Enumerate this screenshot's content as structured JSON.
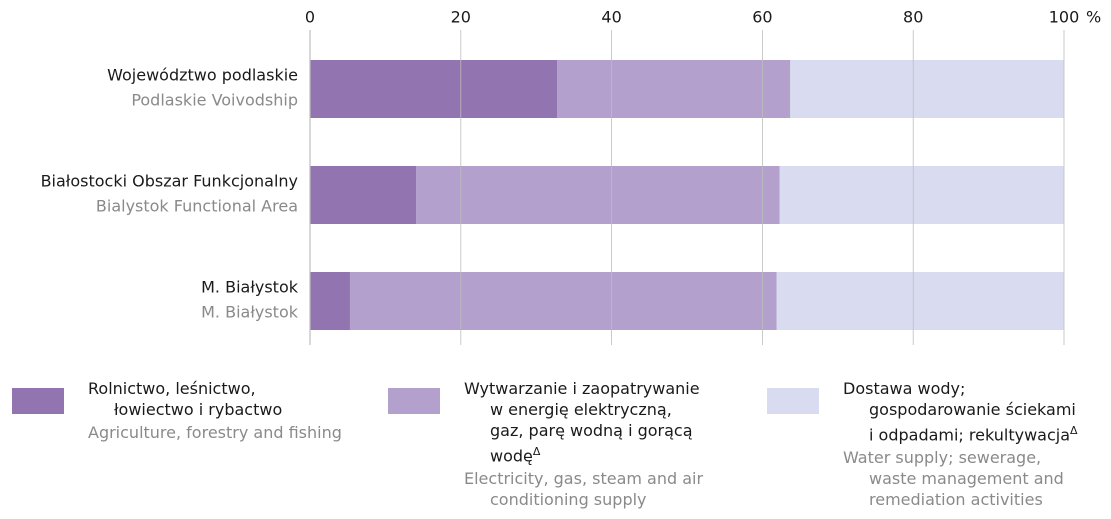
{
  "chart_data": {
    "type": "stacked-bar-horizontal",
    "categories": [
      "Województwo podlaskie",
      "Białostocki Obszar Funkcjonalny",
      "M. Białystok"
    ],
    "categories_en": [
      "Podlaskie Voivodship",
      "Bialystok Functional Area",
      "M. Białystok"
    ],
    "series": [
      {
        "name": "Rolnictwo, leśnictwo,\nłowiectwo i rybactwo",
        "name_en": "Agriculture, forestry and fishing",
        "color": "#9274b0",
        "values": [
          32.8,
          14.1,
          5.3
        ]
      },
      {
        "name": "Wytwarzanie i zaopatrywanie\nw energię elektryczną,\ngaz, parę wodną i gorącą\nwodę",
        "note": "Δ",
        "name_en": "Electricity, gas, steam and air\nconditioning supply",
        "color": "#b3a0cc",
        "values": [
          30.9,
          48.2,
          56.6
        ]
      },
      {
        "name": "Dostawa wody;\ngospodarowanie ściekami\ni odpadami; rekultywacja",
        "note": "Δ",
        "name_en": "Water supply; sewerage,\nwaste management and\nremediation activities",
        "color": "#d9dcf0",
        "values": [
          36.3,
          37.7,
          38.1
        ]
      }
    ],
    "xlim": [
      0,
      100
    ],
    "xticks": [
      0,
      20,
      40,
      60,
      80,
      100
    ],
    "x_unit": "%",
    "grid": true
  }
}
